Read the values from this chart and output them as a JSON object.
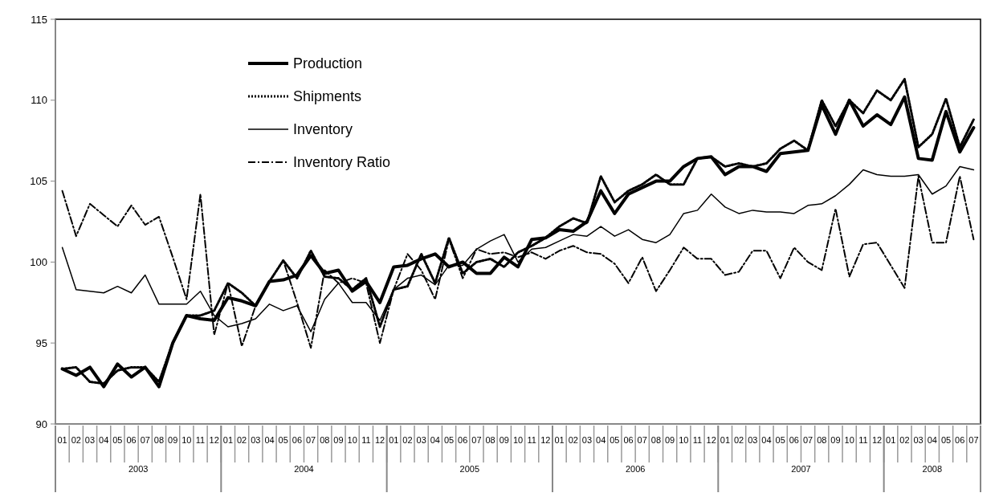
{
  "chart_data": {
    "type": "line",
    "x": [
      "2003-01",
      "2003-02",
      "2003-03",
      "2003-04",
      "2003-05",
      "2003-06",
      "2003-07",
      "2003-08",
      "2003-09",
      "2003-10",
      "2003-11",
      "2003-12",
      "2004-01",
      "2004-02",
      "2004-03",
      "2004-04",
      "2004-05",
      "2004-06",
      "2004-07",
      "2004-08",
      "2004-09",
      "2004-10",
      "2004-11",
      "2004-12",
      "2005-01",
      "2005-02",
      "2005-03",
      "2005-04",
      "2005-05",
      "2005-06",
      "2005-07",
      "2005-08",
      "2005-09",
      "2005-10",
      "2005-11",
      "2005-12",
      "2006-01",
      "2006-02",
      "2006-03",
      "2006-04",
      "2006-05",
      "2006-06",
      "2006-07",
      "2006-08",
      "2006-09",
      "2006-10",
      "2006-11",
      "2006-12",
      "2007-01",
      "2007-02",
      "2007-03",
      "2007-04",
      "2007-05",
      "2007-06",
      "2007-07",
      "2007-08",
      "2007-09",
      "2007-10",
      "2007-11",
      "2007-12",
      "2008-01",
      "2008-02",
      "2008-03",
      "2008-04",
      "2008-05",
      "2008-06",
      "2008-07"
    ],
    "xlim": [
      "2002-12-16",
      "2008-07-16"
    ],
    "x2lim": [
      "2002-12-16",
      "2008-07-16"
    ],
    "x2ticks": [
      {
        "value": "2003-06-16",
        "label": "2003"
      },
      {
        "value": "2004-06-16",
        "label": "2004"
      },
      {
        "value": "2005-06-16",
        "label": "2005"
      },
      {
        "value": "2006-06-16",
        "label": "2006"
      },
      {
        "value": "2007-06-16",
        "label": "2007"
      },
      {
        "value": "2008-04-01",
        "label": "2008"
      }
    ],
    "xticks": [
      {
        "value": "2003-01",
        "label": "01"
      },
      {
        "value": "2003-02",
        "label": "02"
      },
      {
        "value": "2003-03",
        "label": "03"
      },
      {
        "value": "2003-04",
        "label": "04"
      },
      {
        "value": "2003-05",
        "label": "05"
      },
      {
        "value": "2003-06",
        "label": "06"
      },
      {
        "value": "2003-07",
        "label": "07"
      },
      {
        "value": "2003-08",
        "label": "08"
      },
      {
        "value": "2003-09",
        "label": "09"
      },
      {
        "value": "2003-10",
        "label": "10"
      },
      {
        "value": "2003-11",
        "label": "11"
      },
      {
        "value": "2003-12",
        "label": "12"
      },
      {
        "value": "2004-01",
        "label": "01"
      },
      {
        "value": "2004-02",
        "label": "02"
      },
      {
        "value": "2004-03",
        "label": "03"
      },
      {
        "value": "2004-04",
        "label": "04"
      },
      {
        "value": "2004-05",
        "label": "05"
      },
      {
        "value": "2004-06",
        "label": "06"
      },
      {
        "value": "2004-07",
        "label": "07"
      },
      {
        "value": "2004-08",
        "label": "08"
      },
      {
        "value": "2004-09",
        "label": "09"
      },
      {
        "value": "2004-10",
        "label": "10"
      },
      {
        "value": "2004-11",
        "label": "11"
      },
      {
        "value": "2004-12",
        "label": "12"
      },
      {
        "value": "2005-01",
        "label": "01"
      },
      {
        "value": "2005-02",
        "label": "02"
      },
      {
        "value": "2005-03",
        "label": "03"
      },
      {
        "value": "2005-04",
        "label": "04"
      },
      {
        "value": "2005-05",
        "label": "05"
      },
      {
        "value": "2005-06",
        "label": "06"
      },
      {
        "value": "2005-07",
        "label": "07"
      },
      {
        "value": "2005-08",
        "label": "08"
      },
      {
        "value": "2005-09",
        "label": "09"
      },
      {
        "value": "2005-10",
        "label": "10"
      },
      {
        "value": "2005-11",
        "label": "11"
      },
      {
        "value": "2005-12",
        "label": "12"
      },
      {
        "value": "2006-01",
        "label": "01"
      },
      {
        "value": "2006-02",
        "label": "02"
      },
      {
        "value": "2006-03",
        "label": "03"
      },
      {
        "value": "2006-04",
        "label": "04"
      },
      {
        "value": "2006-05",
        "label": "05"
      },
      {
        "value": "2006-06",
        "label": "06"
      },
      {
        "value": "2006-07",
        "label": "07"
      },
      {
        "value": "2006-08",
        "label": "08"
      },
      {
        "value": "2006-09",
        "label": "09"
      },
      {
        "value": "2006-10",
        "label": "10"
      },
      {
        "value": "2006-11",
        "label": "11"
      },
      {
        "value": "2006-12",
        "label": "12"
      },
      {
        "value": "2007-01",
        "label": "01"
      },
      {
        "value": "2007-02",
        "label": "02"
      },
      {
        "value": "2007-03",
        "label": "03"
      },
      {
        "value": "2007-04",
        "label": "04"
      },
      {
        "value": "2007-05",
        "label": "05"
      },
      {
        "value": "2007-06",
        "label": "06"
      },
      {
        "value": "2007-07",
        "label": "07"
      },
      {
        "value": "2007-08",
        "label": "08"
      },
      {
        "value": "2007-09",
        "label": "09"
      },
      {
        "value": "2007-10",
        "label": "10"
      },
      {
        "value": "2007-11",
        "label": "11"
      },
      {
        "value": "2007-12",
        "label": "12"
      },
      {
        "value": "2008-01",
        "label": "01"
      },
      {
        "value": "2008-02",
        "label": "02"
      },
      {
        "value": "2008-03",
        "label": "03"
      },
      {
        "value": "2008-04",
        "label": "04"
      },
      {
        "value": "2008-05",
        "label": "05"
      },
      {
        "value": "2008-06",
        "label": "06"
      },
      {
        "value": "2008-07",
        "label": "07"
      }
    ],
    "ylim": [
      90,
      115
    ],
    "yticks": [
      90,
      95,
      100,
      105,
      110,
      115
    ],
    "grid": false,
    "legend": "top left",
    "series": [
      {
        "name": "Production",
        "color": "#000000",
        "line_style": "solid",
        "values": [
          93.4,
          93.0,
          93.5,
          92.3,
          93.7,
          92.9,
          93.5,
          92.3,
          95.0,
          96.7,
          96.5,
          96.4,
          97.8,
          97.6,
          97.3,
          98.8,
          98.9,
          99.2,
          100.4,
          99.3,
          99.5,
          98.2,
          98.8,
          97.5,
          99.7,
          99.8,
          100.2,
          100.5,
          99.7,
          100.0,
          99.3,
          99.3,
          100.3,
          99.7,
          101.4,
          101.5,
          102.0,
          101.9,
          102.5,
          104.4,
          103.0,
          104.2,
          104.6,
          105.0,
          105.0,
          105.9,
          106.4,
          106.5,
          105.4,
          105.9,
          105.9,
          105.6,
          106.7,
          106.8,
          106.9,
          109.7,
          107.9,
          110.0,
          108.4,
          109.1,
          108.5,
          110.2,
          106.4,
          106.3,
          109.3,
          106.8,
          108.3
        ]
      },
      {
        "name": "Shipments",
        "color": "#000000",
        "line_style": "dotted",
        "values": [
          93.4,
          93.5,
          92.6,
          92.5,
          93.3,
          93.5,
          93.5,
          92.6,
          95.0,
          96.7,
          96.7,
          97.0,
          98.7,
          98.1,
          97.3,
          98.8,
          100.1,
          99.0,
          100.7,
          99.1,
          99.0,
          98.3,
          99.0,
          96.0,
          98.3,
          98.5,
          100.5,
          98.7,
          101.5,
          99.3,
          100.0,
          100.2,
          99.7,
          100.6,
          101.0,
          101.5,
          102.2,
          102.7,
          102.4,
          105.3,
          103.7,
          104.4,
          104.8,
          105.4,
          104.8,
          104.8,
          106.4,
          106.5,
          105.9,
          106.1,
          105.9,
          106.1,
          107.0,
          107.5,
          106.9,
          110.0,
          108.4,
          110.0,
          109.2,
          110.6,
          110.0,
          111.3,
          107.1,
          107.9,
          110.1,
          107.1,
          108.8
        ]
      },
      {
        "name": "Inventory",
        "color": "#000000",
        "line_style": "solid",
        "values": [
          100.9,
          98.3,
          98.2,
          98.1,
          98.5,
          98.1,
          99.2,
          97.4,
          97.4,
          97.4,
          98.2,
          96.7,
          96.0,
          96.2,
          96.5,
          97.4,
          97.0,
          97.3,
          95.7,
          97.7,
          98.7,
          97.5,
          97.5,
          96.4,
          98.3,
          99.0,
          99.2,
          98.6,
          99.8,
          99.8,
          100.8,
          101.3,
          101.7,
          100.0,
          100.8,
          100.9,
          101.3,
          101.7,
          101.6,
          102.2,
          101.6,
          102.0,
          101.4,
          101.2,
          101.7,
          103.0,
          103.2,
          104.2,
          103.4,
          103.0,
          103.2,
          103.1,
          103.1,
          103.0,
          103.5,
          103.6,
          104.1,
          104.8,
          105.7,
          105.4,
          105.3,
          105.3,
          105.4,
          104.2,
          104.7,
          105.9,
          105.7
        ]
      },
      {
        "name": "Inventory Ratio",
        "color": "#000000",
        "line_style": "dashed",
        "values": [
          104.4,
          101.6,
          103.6,
          102.9,
          102.2,
          103.5,
          102.3,
          102.8,
          100.3,
          97.7,
          104.2,
          95.5,
          98.7,
          94.8,
          97.3,
          98.8,
          100.1,
          97.5,
          94.7,
          99.5,
          98.7,
          99.0,
          98.7,
          95.0,
          98.3,
          100.5,
          99.5,
          97.7,
          101.4,
          99.0,
          100.8,
          100.5,
          100.6,
          100.3,
          100.6,
          100.2,
          100.7,
          101.0,
          100.6,
          100.5,
          99.9,
          98.7,
          100.3,
          98.2,
          99.5,
          100.9,
          100.2,
          100.2,
          99.2,
          99.4,
          100.7,
          100.7,
          99.0,
          100.9,
          100.0,
          99.5,
          103.3,
          99.1,
          101.1,
          101.2,
          99.8,
          98.4,
          105.3,
          101.2,
          101.2,
          105.3,
          101.4
        ]
      }
    ]
  }
}
